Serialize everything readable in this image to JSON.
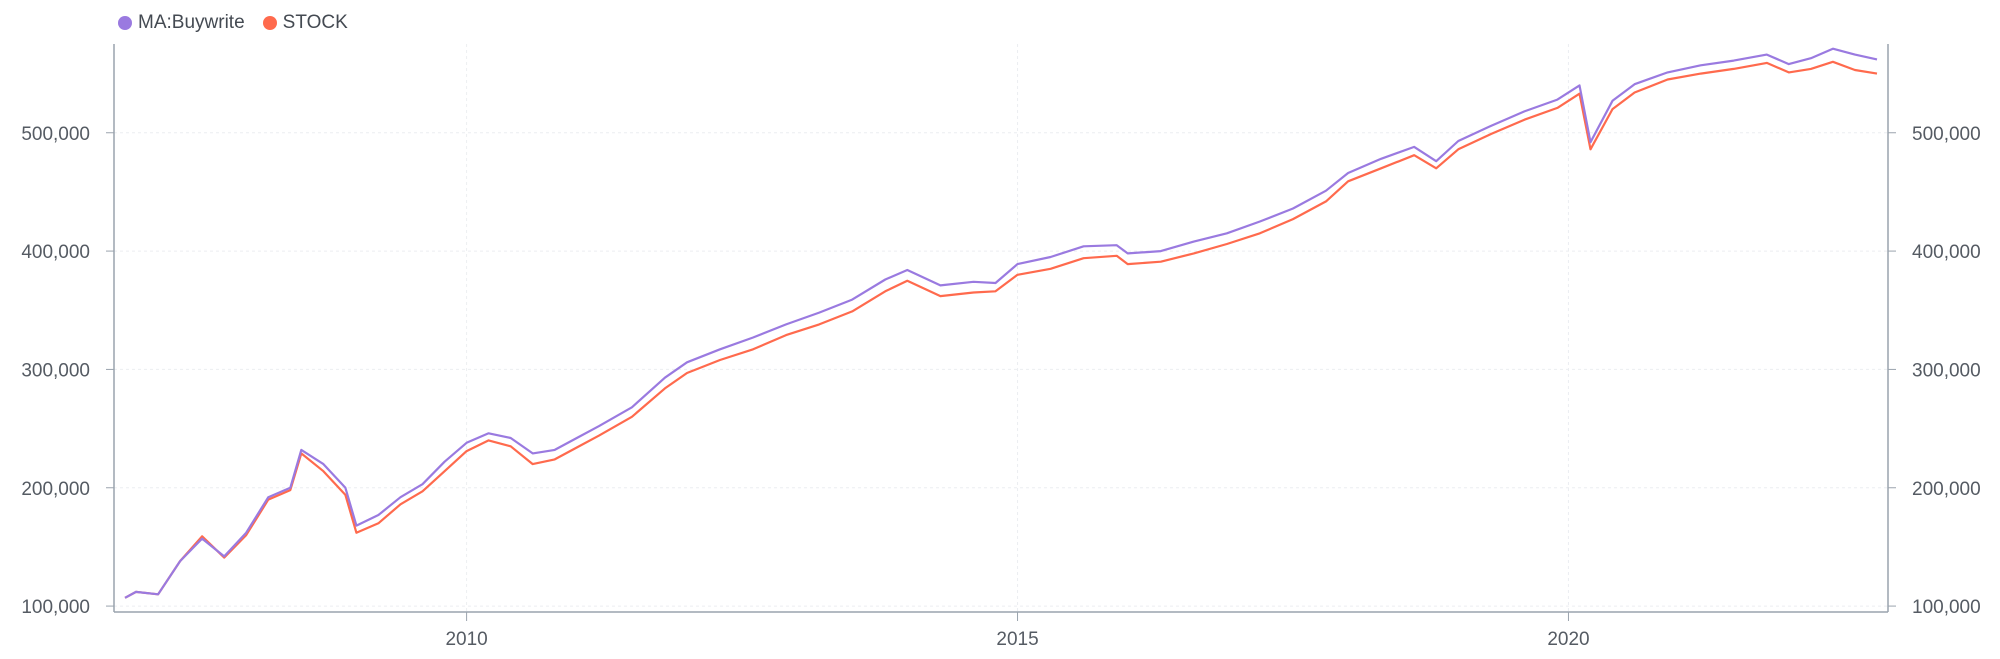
{
  "legend": [
    {
      "label": "MA:Buywrite",
      "color": "#9a7ae0"
    },
    {
      "label": "STOCK",
      "color": "#ff6a4d"
    }
  ],
  "chart_data": {
    "type": "line",
    "title": "",
    "xlabel": "",
    "ylabel": "",
    "x_range": [
      2006.8,
      2022.9
    ],
    "ylim": [
      95000,
      575000
    ],
    "y_ticks": [
      100000,
      200000,
      300000,
      400000,
      500000
    ],
    "y_tick_labels": [
      "100,000",
      "200,000",
      "300,000",
      "400,000",
      "500,000"
    ],
    "x_ticks": [
      2010,
      2015,
      2020
    ],
    "x_tick_labels": [
      "2010",
      "2015",
      "2020"
    ],
    "grid": true,
    "legend_position": "top-left",
    "x": [
      2006.9,
      2007.0,
      2007.2,
      2007.4,
      2007.6,
      2007.8,
      2008.0,
      2008.2,
      2008.4,
      2008.5,
      2008.7,
      2008.9,
      2009.0,
      2009.2,
      2009.4,
      2009.6,
      2009.8,
      2010.0,
      2010.2,
      2010.4,
      2010.6,
      2010.8,
      2011.0,
      2011.2,
      2011.5,
      2011.8,
      2012.0,
      2012.3,
      2012.6,
      2012.9,
      2013.2,
      2013.5,
      2013.8,
      2014.0,
      2014.3,
      2014.6,
      2014.8,
      2015.0,
      2015.3,
      2015.6,
      2015.9,
      2016.0,
      2016.3,
      2016.6,
      2016.9,
      2017.2,
      2017.5,
      2017.8,
      2018.0,
      2018.3,
      2018.6,
      2018.8,
      2019.0,
      2019.3,
      2019.6,
      2019.9,
      2020.1,
      2020.2,
      2020.4,
      2020.6,
      2020.9,
      2021.2,
      2021.5,
      2021.8,
      2022.0,
      2022.2,
      2022.4,
      2022.6,
      2022.8
    ],
    "series": [
      {
        "name": "MA:Buywrite",
        "color": "#9a7ae0",
        "values": [
          107000,
          112000,
          110000,
          138000,
          157000,
          142000,
          162000,
          192000,
          200000,
          232000,
          220000,
          200000,
          168000,
          177000,
          192000,
          203000,
          222000,
          238000,
          246000,
          242000,
          229000,
          232000,
          242000,
          252000,
          268000,
          293000,
          306000,
          317000,
          327000,
          338000,
          348000,
          359000,
          376000,
          384000,
          371000,
          374000,
          373000,
          389000,
          395000,
          404000,
          405000,
          398000,
          400000,
          408000,
          415000,
          425000,
          436000,
          451000,
          466000,
          478000,
          488000,
          476000,
          493000,
          506000,
          518000,
          528000,
          540000,
          492000,
          527000,
          541000,
          551000,
          557000,
          561000,
          566000,
          558000,
          563000,
          571000,
          566000,
          562000
        ]
      },
      {
        "name": "STOCK",
        "color": "#ff6a4d",
        "values": [
          107000,
          112000,
          110000,
          138000,
          159000,
          141000,
          160000,
          190000,
          198000,
          229000,
          214000,
          194000,
          162000,
          170000,
          186000,
          197000,
          214000,
          231000,
          240000,
          235000,
          220000,
          224000,
          234000,
          244000,
          260000,
          284000,
          297000,
          308000,
          317000,
          329000,
          338000,
          349000,
          366000,
          375000,
          362000,
          365000,
          366000,
          380000,
          385000,
          394000,
          396000,
          389000,
          391000,
          398000,
          406000,
          415000,
          427000,
          442000,
          459000,
          470000,
          481000,
          470000,
          486000,
          499000,
          511000,
          521000,
          533000,
          486000,
          520000,
          534000,
          545000,
          550000,
          554000,
          559000,
          551000,
          554000,
          560000,
          553000,
          550000
        ]
      }
    ]
  }
}
